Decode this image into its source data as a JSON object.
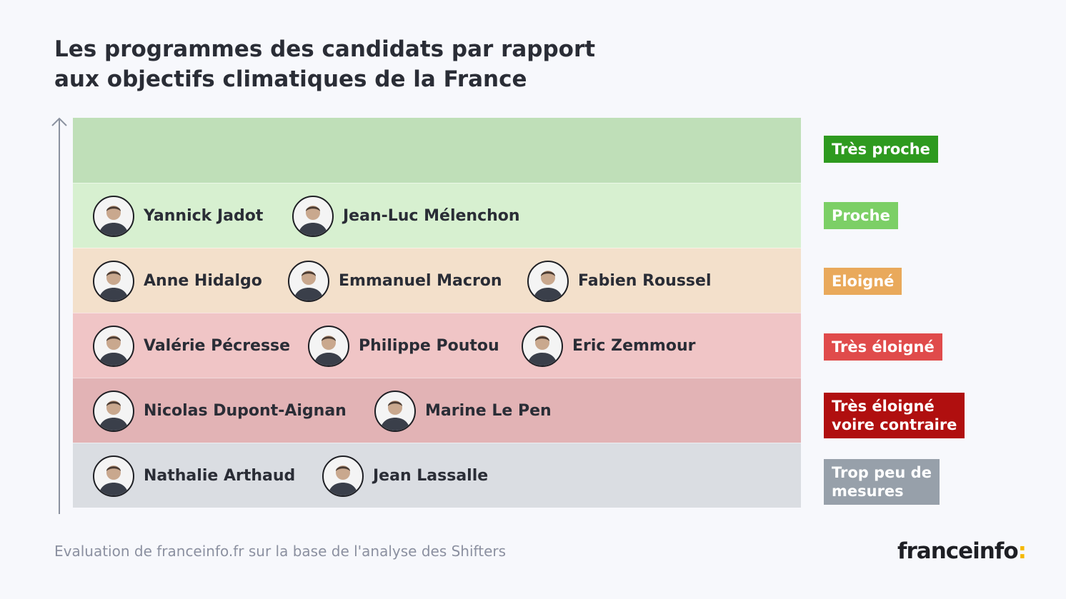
{
  "chart_data": {
    "type": "table",
    "title_lines": [
      "Les programmes des candidats par rapport",
      "aux objectifs climatiques de la France"
    ],
    "categories": [
      {
        "label": "Très proche",
        "color": "#2e9a1f",
        "band_color": "#bfdfb8",
        "candidates": []
      },
      {
        "label": "Proche",
        "color": "#7ccf66",
        "band_color": "#d7f0d0",
        "candidates": [
          "Yannick Jadot",
          "Jean-Luc Mélenchon"
        ]
      },
      {
        "label": "Eloigné",
        "color": "#e9a95b",
        "band_color": "#f3e0cb",
        "candidates": [
          "Anne Hidalgo",
          "Emmanuel Macron",
          "Fabien Roussel"
        ]
      },
      {
        "label": "Très éloigné",
        "color": "#e04b4b",
        "band_color": "#f0c5c6",
        "candidates": [
          "Valérie Pécresse",
          "Philippe Poutou",
          "Eric Zemmour"
        ]
      },
      {
        "label": "Très éloigné voire contraire",
        "label_lines": [
          "Très éloigné",
          "voire contraire"
        ],
        "color": "#b00f0f",
        "band_color": "#e2b3b5",
        "candidates": [
          "Nicolas Dupont-Aignan",
          "Marine Le Pen"
        ]
      },
      {
        "label": "Trop peu de mesures",
        "label_lines": [
          "Trop peu de",
          "mesures"
        ],
        "color": "#97a0aa",
        "band_color": "#dadde2",
        "candidates": [
          "Nathalie Arthaud",
          "Jean Lassalle"
        ]
      }
    ],
    "source": "Evaluation de franceinfo.fr sur la base de l'analyse des Shifters"
  },
  "brand": {
    "name": "franceinfo",
    "suffix": ":",
    "accent": "#f5b800"
  },
  "colors": {
    "text": "#2a2d36",
    "axis": "#8b92a0",
    "background": "#f7f8fc"
  }
}
